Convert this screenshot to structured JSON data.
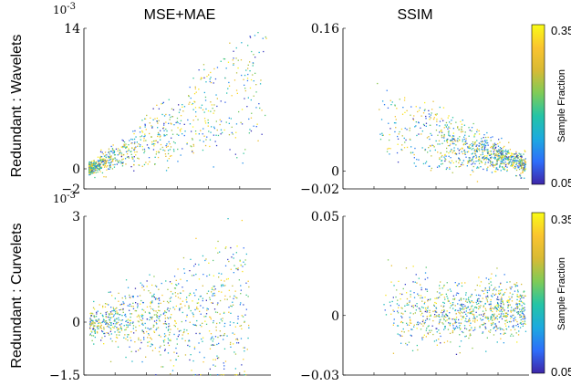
{
  "figure": {
    "col_titles": [
      "MSE+MAE",
      "SSIM"
    ],
    "row_titles": [
      "Redundant : Wavelets",
      "Redundant : Curvelets"
    ]
  },
  "colorbar": {
    "label": "Sample Fraction",
    "min": 0.05,
    "max": 0.35,
    "tick_labels": [
      "0.35",
      "0.05"
    ],
    "colors": [
      "#3e26a8",
      "#2e6efa",
      "#1caadf",
      "#24c4a6",
      "#7fcb57",
      "#d8ba34",
      "#fac42f",
      "#f9fb15"
    ]
  },
  "chart_data": [
    {
      "type": "scatter",
      "title": "MSE+MAE",
      "row": "Redundant : Wavelets",
      "ylim": [
        -0.002,
        0.014
      ],
      "y_scale_label": "10^{-3}",
      "y_tick_values": [
        14,
        0,
        -2
      ],
      "y_tick_labels": [
        "14",
        "0",
        "−2"
      ],
      "x_ticks_labeled": false,
      "grid": false,
      "color_encodes": "Sample Fraction",
      "description_points": "dense cluster near 0, fanning upward to the right"
    },
    {
      "type": "scatter",
      "title": "SSIM",
      "row": "Redundant : Wavelets",
      "ylim": [
        -0.02,
        0.16
      ],
      "y_tick_values": [
        0.16,
        0,
        -0.02
      ],
      "y_tick_labels": [
        "0.16",
        "0",
        "−0.02"
      ],
      "x_ticks_labeled": false,
      "grid": false,
      "color_encodes": "Sample Fraction"
    },
    {
      "type": "scatter",
      "row": "Redundant : Curvelets",
      "ylim": [
        -0.0015,
        0.003
      ],
      "y_scale_label": "10^{-3}",
      "y_tick_values": [
        3,
        0,
        -1.5
      ],
      "y_tick_labels": [
        "3",
        "0",
        "−1.5"
      ],
      "x_ticks_labeled": false,
      "grid": false,
      "color_encodes": "Sample Fraction"
    },
    {
      "type": "scatter",
      "row": "Redundant : Curvelets",
      "ylim": [
        -0.03,
        0.05
      ],
      "y_tick_values": [
        0.05,
        0,
        -0.03
      ],
      "y_tick_labels": [
        "0.05",
        "0",
        "−0.03"
      ],
      "x_ticks_labeled": false,
      "grid": false,
      "color_encodes": "Sample Fraction"
    }
  ]
}
